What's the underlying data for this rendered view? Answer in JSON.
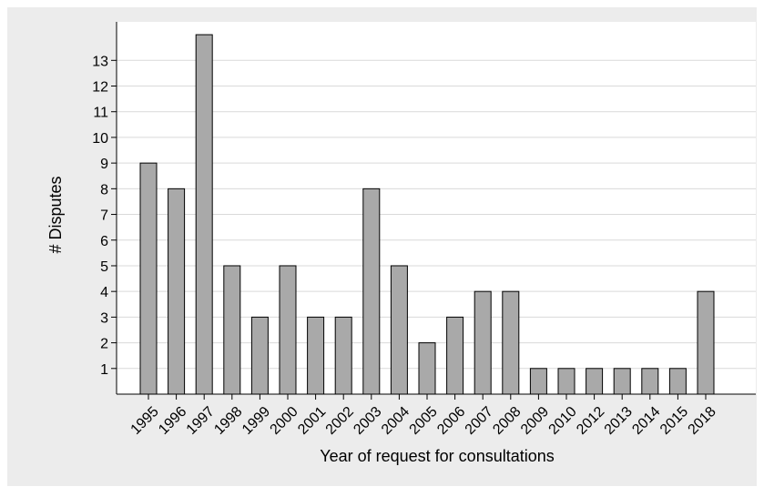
{
  "chart_data": {
    "type": "bar",
    "title": "",
    "xlabel": "Year of request for consultations",
    "ylabel": "# Disputes",
    "categories": [
      "1995",
      "1996",
      "1997",
      "1998",
      "1999",
      "2000",
      "2001",
      "2002",
      "2003",
      "2004",
      "2005",
      "2006",
      "2007",
      "2008",
      "2009",
      "2010",
      "2012",
      "2013",
      "2014",
      "2015",
      "2018"
    ],
    "values": [
      9,
      8,
      14,
      5,
      3,
      5,
      3,
      3,
      8,
      5,
      2,
      3,
      4,
      4,
      1,
      1,
      1,
      1,
      1,
      1,
      4
    ],
    "yticks": [
      1,
      2,
      3,
      4,
      5,
      6,
      7,
      8,
      9,
      10,
      11,
      12,
      13
    ],
    "ylim": [
      0,
      14.5
    ],
    "grid": true,
    "colors": {
      "bar_fill": "#a9a9a9",
      "bar_stroke": "#000000",
      "plot_bg": "#ffffff",
      "frame_bg": "#ececec",
      "grid": "#d9d9d9"
    }
  }
}
